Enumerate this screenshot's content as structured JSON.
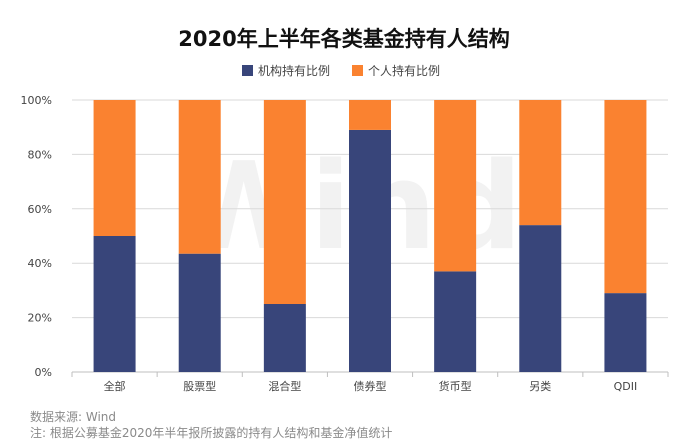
{
  "colors": {
    "institutional": "#38457a",
    "individual": "#fa8230",
    "grid": "#d9d9d9",
    "axis": "#bfbfbf"
  },
  "watermark_text": "Wind",
  "footnotes": {
    "source": "数据来源: Wind",
    "note": "注: 根据公募基金2020年半年报所披露的持有人结构和基金净值统计"
  },
  "chart_data": {
    "type": "bar",
    "stacked": true,
    "title": "2020年上半年各类基金持有人结构",
    "categories": [
      "全部",
      "股票型",
      "混合型",
      "债券型",
      "货币型",
      "另类",
      "QDII"
    ],
    "series": [
      {
        "name": "机构持有比例",
        "values": [
          50,
          43.5,
          25,
          89,
          37,
          54,
          29
        ]
      },
      {
        "name": "个人持有比例",
        "values": [
          50,
          56.5,
          75,
          11,
          63,
          46,
          71
        ]
      }
    ],
    "yticks": [
      "0%",
      "20%",
      "40%",
      "60%",
      "80%",
      "100%"
    ],
    "ylim": [
      0,
      100
    ],
    "xlabel": "",
    "ylabel": "",
    "legend": "top-center"
  }
}
